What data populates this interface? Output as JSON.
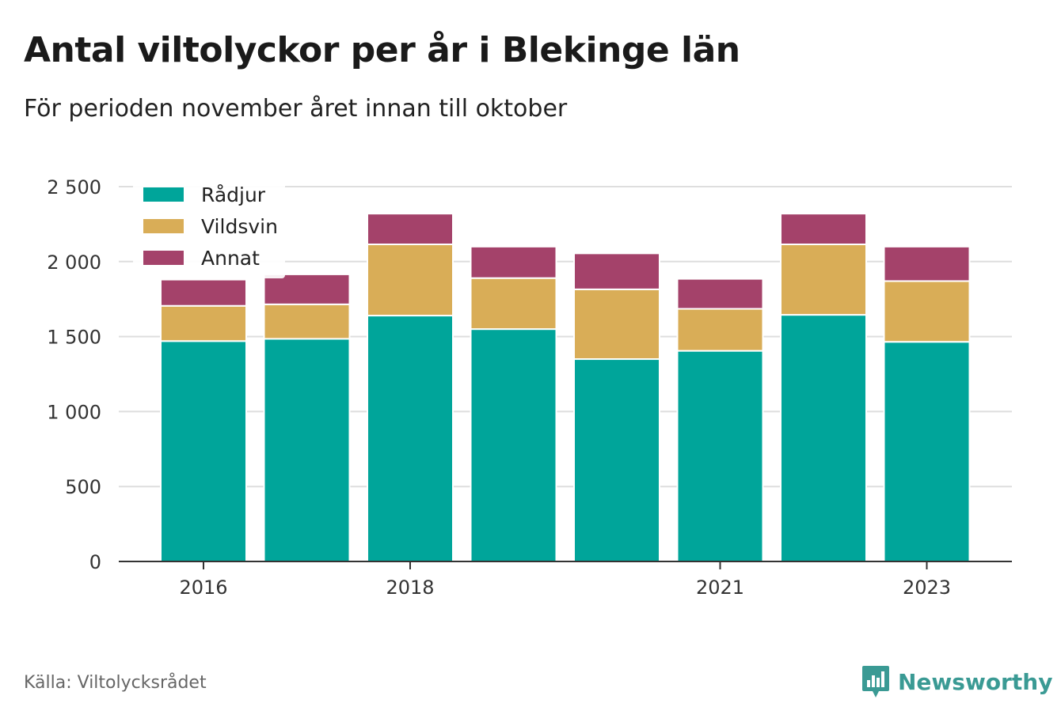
{
  "header": {
    "title": "Antal viltolyckor per år i Blekinge län",
    "subtitle": "För perioden november året innan till oktober"
  },
  "footer": {
    "source": "Källa: Viltolycksrådet",
    "brand": "Newsworthy",
    "brand_icon": "bar-chart-speech-bubble-icon",
    "brand_color": "#3a9a94"
  },
  "chart_data": {
    "type": "bar",
    "stacked": true,
    "categories": [
      "2016",
      "2017",
      "2018",
      "2019",
      "2020",
      "2021",
      "2022",
      "2023"
    ],
    "x_tick_labels": [
      "2016",
      "",
      "2018",
      "",
      "",
      "2021",
      "",
      "2023"
    ],
    "series": [
      {
        "name": "Rådjur",
        "color": "#00a59a",
        "values": [
          1470,
          1485,
          1640,
          1550,
          1350,
          1405,
          1645,
          1465
        ]
      },
      {
        "name": "Vildsvin",
        "color": "#d9ad57",
        "values": [
          235,
          230,
          475,
          340,
          465,
          280,
          470,
          405
        ]
      },
      {
        "name": "Annat",
        "color": "#a4426a",
        "values": [
          175,
          200,
          205,
          210,
          240,
          200,
          205,
          230
        ]
      }
    ],
    "y_ticks": [
      0,
      500,
      1000,
      1500,
      2000,
      2500
    ],
    "y_tick_labels": [
      "0",
      "500",
      "1 000",
      "1 500",
      "2 000",
      "2 500"
    ],
    "ylim": [
      0,
      2500
    ],
    "xlabel": "",
    "ylabel": "",
    "grid": true,
    "legend_position": "top-left"
  }
}
